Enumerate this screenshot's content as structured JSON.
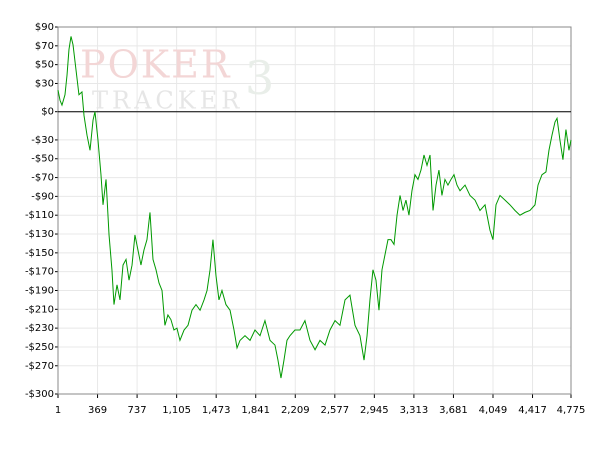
{
  "chart_data": {
    "type": "line",
    "watermark": {
      "title": "POKER",
      "subtitle": "TRACKER",
      "version": "3"
    },
    "x": [
      1,
      20,
      38,
      66,
      85,
      103,
      122,
      141,
      169,
      196,
      224,
      243,
      271,
      299,
      327,
      345,
      373,
      401,
      420,
      448,
      476,
      503,
      522,
      550,
      578,
      606,
      634,
      662,
      690,
      717,
      745,
      773,
      801,
      829,
      857,
      885,
      913,
      941,
      969,
      996,
      1024,
      1052,
      1080,
      1108,
      1136,
      1174,
      1211,
      1248,
      1285,
      1323,
      1360,
      1388,
      1416,
      1443,
      1471,
      1499,
      1527,
      1564,
      1602,
      1639,
      1667,
      1695,
      1741,
      1788,
      1834,
      1881,
      1927,
      1974,
      2020,
      2048,
      2076,
      2104,
      2132,
      2160,
      2206,
      2253,
      2299,
      2346,
      2393,
      2439,
      2486,
      2532,
      2579,
      2625,
      2672,
      2718,
      2765,
      2811,
      2849,
      2877,
      2904,
      2932,
      2960,
      2988,
      3016,
      3044,
      3072,
      3100,
      3128,
      3156,
      3184,
      3212,
      3239,
      3267,
      3295,
      3323,
      3351,
      3379,
      3407,
      3435,
      3463,
      3491,
      3519,
      3546,
      3574,
      3602,
      3630,
      3658,
      3686,
      3714,
      3742,
      3789,
      3835,
      3882,
      3928,
      3975,
      4021,
      4049,
      4077,
      4114,
      4161,
      4207,
      4254,
      4300,
      4347,
      4393,
      4440,
      4468,
      4505,
      4542,
      4570,
      4598,
      4626,
      4645,
      4672,
      4700,
      4728,
      4756,
      4775
    ],
    "values": [
      23,
      12,
      7,
      18,
      39,
      66,
      80,
      71,
      44,
      18,
      21,
      -4,
      -25,
      -41,
      -9,
      0,
      -30,
      -67,
      -99,
      -72,
      -131,
      -168,
      -205,
      -184,
      -200,
      -163,
      -157,
      -179,
      -163,
      -131,
      -147,
      -163,
      -147,
      -136,
      -107,
      -157,
      -168,
      -182,
      -190,
      -227,
      -216,
      -221,
      -232,
      -230,
      -243,
      -232,
      -227,
      -211,
      -205,
      -211,
      -200,
      -190,
      -168,
      -136,
      -174,
      -200,
      -190,
      -205,
      -211,
      -232,
      -251,
      -243,
      -238,
      -243,
      -232,
      -238,
      -222,
      -243,
      -248,
      -264,
      -283,
      -264,
      -243,
      -238,
      -232,
      -232,
      -222,
      -243,
      -253,
      -243,
      -248,
      -232,
      -222,
      -227,
      -200,
      -195,
      -227,
      -238,
      -264,
      -238,
      -200,
      -168,
      -179,
      -211,
      -168,
      -152,
      -136,
      -136,
      -141,
      -110,
      -89,
      -105,
      -94,
      -110,
      -84,
      -67,
      -72,
      -62,
      -46,
      -57,
      -46,
      -105,
      -78,
      -62,
      -89,
      -72,
      -78,
      -72,
      -67,
      -78,
      -84,
      -78,
      -89,
      -94,
      -105,
      -99,
      -126,
      -136,
      -99,
      -89,
      -94,
      -99,
      -105,
      -110,
      -107,
      -105,
      -99,
      -78,
      -67,
      -64,
      -41,
      -25,
      -11,
      -7,
      -30,
      -51,
      -19,
      -41,
      -30
    ],
    "color": "#009900",
    "xlim": [
      1,
      4775
    ],
    "xticks": [
      1,
      369,
      737,
      {
        "value": 1105,
        "label": "1,105"
      },
      {
        "value": 1473,
        "label": "1,473"
      },
      {
        "value": 1841,
        "label": "1,841"
      },
      {
        "value": 2209,
        "label": "2,209"
      },
      {
        "value": 2577,
        "label": "2,577"
      },
      {
        "value": 2945,
        "label": "2,945"
      },
      {
        "value": 3313,
        "label": "3,313"
      },
      {
        "value": 3681,
        "label": "3,681"
      },
      {
        "value": 4049,
        "label": "4,049"
      },
      {
        "value": 4417,
        "label": "4,417"
      },
      {
        "value": 4775,
        "label": "4,775"
      }
    ],
    "ylim": [
      -300,
      90
    ],
    "yticks": [
      {
        "value": 90,
        "label": "$90"
      },
      {
        "value": 70,
        "label": "$70"
      },
      {
        "value": 50,
        "label": "$50"
      },
      {
        "value": 30,
        "label": "$30"
      },
      {
        "value": 0,
        "label": "$0"
      },
      {
        "value": -30,
        "label": "-$30"
      },
      {
        "value": -50,
        "label": "-$50"
      },
      {
        "value": -70,
        "label": "-$70"
      },
      {
        "value": -90,
        "label": "-$90"
      },
      {
        "value": -110,
        "label": "-$110"
      },
      {
        "value": -130,
        "label": "-$130"
      },
      {
        "value": -150,
        "label": "-$150"
      },
      {
        "value": -170,
        "label": "-$170"
      },
      {
        "value": -190,
        "label": "-$190"
      },
      {
        "value": -210,
        "label": "-$210"
      },
      {
        "value": -230,
        "label": "-$230"
      },
      {
        "value": -250,
        "label": "-$250"
      },
      {
        "value": -270,
        "label": "-$270"
      },
      {
        "value": -300,
        "label": "-$300"
      }
    ],
    "grid": true,
    "zero_line": true
  }
}
